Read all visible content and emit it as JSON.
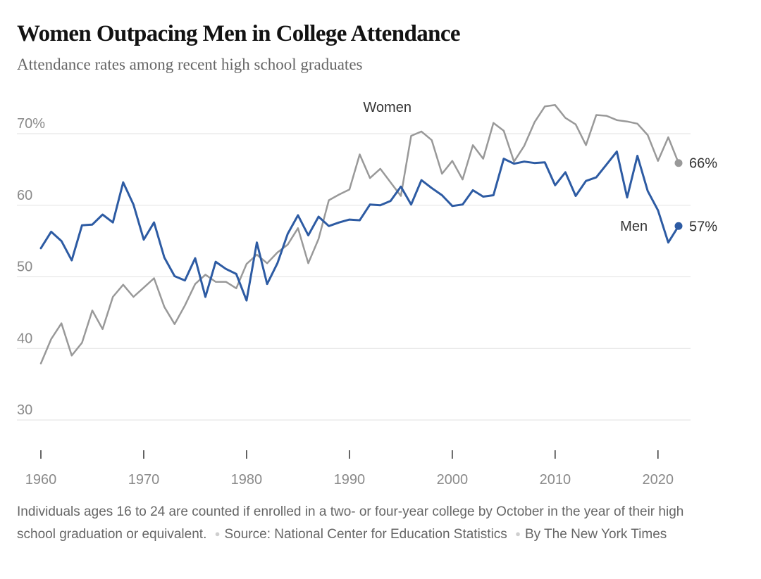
{
  "header": {
    "title": "Women Outpacing Men in College Attendance",
    "subtitle": "Attendance rates among recent high school graduates"
  },
  "footer": {
    "note": "Individuals ages 16 to 24 are counted if enrolled in a two- or four-year college by October in the year of their high school graduation or equivalent.",
    "source": "Source: National Center for Education Statistics",
    "credit": "By The New York Times"
  },
  "chart_data": {
    "type": "line",
    "title": "Women Outpacing Men in College Attendance",
    "subtitle": "Attendance rates among recent high school graduates",
    "xlabel": "",
    "ylabel": "",
    "xlim": [
      1960,
      2022
    ],
    "ylim": [
      25,
      75
    ],
    "grid": true,
    "x_ticks": [
      1960,
      1970,
      1980,
      1990,
      2000,
      2010,
      2020
    ],
    "y_ticks": [
      30,
      40,
      50,
      60,
      70
    ],
    "y_tick_labels": [
      "30",
      "40",
      "50",
      "60",
      "70%"
    ],
    "x": [
      1960,
      1961,
      1962,
      1963,
      1964,
      1965,
      1966,
      1967,
      1968,
      1969,
      1970,
      1971,
      1972,
      1973,
      1974,
      1975,
      1976,
      1977,
      1978,
      1979,
      1980,
      1981,
      1982,
      1983,
      1984,
      1985,
      1986,
      1987,
      1988,
      1989,
      1990,
      1991,
      1992,
      1993,
      1994,
      1995,
      1996,
      1997,
      1998,
      1999,
      2000,
      2001,
      2002,
      2003,
      2004,
      2005,
      2006,
      2007,
      2008,
      2009,
      2010,
      2011,
      2012,
      2013,
      2014,
      2015,
      2016,
      2017,
      2018,
      2019,
      2020,
      2021,
      2022
    ],
    "series": [
      {
        "name": "Women",
        "color": "#999999",
        "end_label": "66%",
        "values": [
          37.9,
          41.3,
          43.5,
          39.0,
          40.8,
          45.3,
          42.7,
          47.2,
          48.9,
          47.2,
          48.5,
          49.8,
          45.8,
          43.4,
          46.0,
          49.0,
          50.3,
          49.3,
          49.3,
          48.4,
          51.8,
          53.1,
          51.9,
          53.4,
          54.5,
          56.8,
          51.9,
          55.3,
          60.7,
          61.5,
          62.2,
          67.1,
          63.8,
          65.1,
          63.2,
          61.3,
          69.7,
          70.3,
          69.1,
          64.4,
          66.2,
          63.6,
          68.4,
          66.5,
          71.5,
          70.4,
          66.1,
          68.3,
          71.6,
          73.8,
          74.0,
          72.2,
          71.3,
          68.4,
          72.6,
          72.5,
          71.9,
          71.7,
          71.4,
          69.8,
          66.2,
          69.5,
          65.9
        ]
      },
      {
        "name": "Men",
        "color": "#2d5ba3",
        "end_label": "57%",
        "values": [
          54.0,
          56.3,
          55.0,
          52.3,
          57.2,
          57.3,
          58.7,
          57.6,
          63.2,
          60.1,
          55.2,
          57.6,
          52.7,
          50.1,
          49.5,
          52.6,
          47.2,
          52.1,
          51.1,
          50.4,
          46.7,
          54.8,
          49.0,
          51.9,
          56.0,
          58.6,
          55.8,
          58.4,
          57.1,
          57.6,
          58.0,
          57.9,
          60.1,
          60.0,
          60.6,
          62.6,
          60.1,
          63.5,
          62.4,
          61.4,
          59.9,
          60.1,
          62.1,
          61.2,
          61.4,
          66.5,
          65.8,
          66.1,
          65.9,
          66.0,
          62.8,
          64.6,
          61.3,
          63.4,
          63.9,
          65.7,
          67.5,
          61.1,
          66.9,
          62.0,
          59.3,
          54.8,
          57.1
        ]
      }
    ]
  }
}
